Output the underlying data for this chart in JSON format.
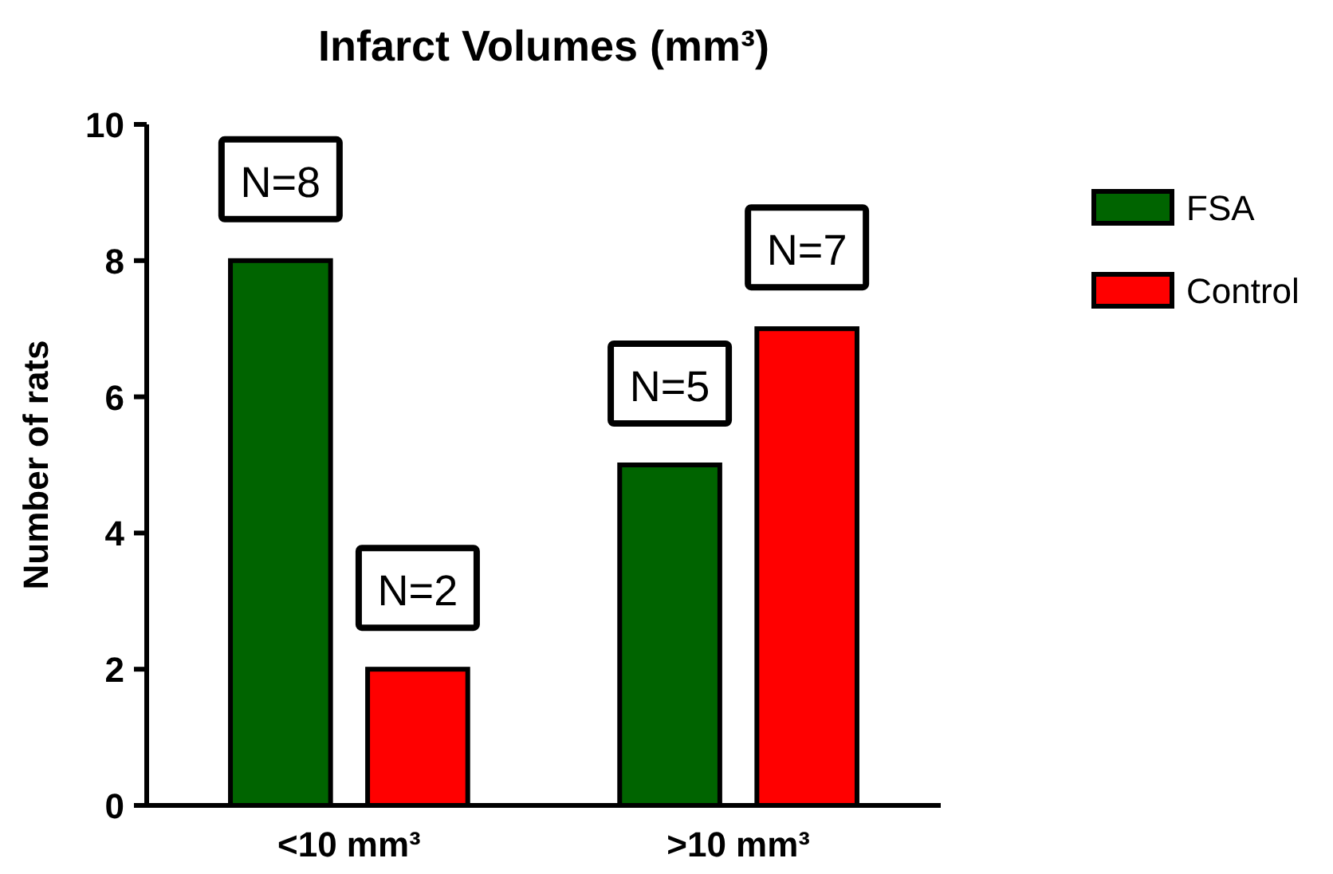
{
  "chart_data": {
    "type": "bar",
    "title": "Infarct Volumes (mm³)",
    "ylabel": "Number of rats",
    "categories": [
      "<10 mm³",
      ">10 mm³"
    ],
    "series": [
      {
        "name": "FSA",
        "color": "#006400",
        "values": [
          8,
          5
        ],
        "value_labels": [
          "N=8",
          "N=5"
        ]
      },
      {
        "name": "Control",
        "color": "#ff0000",
        "values": [
          2,
          7
        ],
        "value_labels": [
          "N=2",
          "N=7"
        ]
      }
    ],
    "ylim": [
      0,
      10
    ],
    "yticks": [
      0,
      2,
      4,
      6,
      8,
      10
    ],
    "grid": false,
    "legend": "right"
  }
}
